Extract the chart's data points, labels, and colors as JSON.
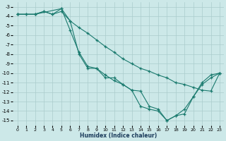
{
  "xlabel": "Humidex (Indice chaleur)",
  "bg_color": "#cce8e8",
  "grid_color": "#aacccc",
  "line_color": "#1a7a6e",
  "xlim": [
    -0.5,
    23.5
  ],
  "ylim": [
    -15.5,
    -2.5
  ],
  "line1_x": [
    0,
    1,
    2,
    3,
    4,
    5,
    6,
    7,
    8,
    9,
    10,
    11,
    12,
    13,
    14,
    15,
    16,
    17,
    18,
    19,
    20,
    21,
    22,
    23
  ],
  "line1_y": [
    -3.8,
    -3.8,
    -3.8,
    -3.5,
    -3.8,
    -3.5,
    -4.5,
    -5.2,
    -5.8,
    -6.5,
    -7.2,
    -7.8,
    -8.5,
    -9.0,
    -9.5,
    -9.8,
    -10.2,
    -10.5,
    -11.0,
    -11.2,
    -11.5,
    -11.8,
    -11.9,
    -10.0
  ],
  "line2_x": [
    0,
    1,
    2,
    3,
    4,
    5,
    6,
    7,
    8,
    9,
    10,
    11,
    12,
    13,
    14,
    15,
    16,
    17,
    18,
    19,
    20,
    21,
    22,
    23
  ],
  "line2_y": [
    -3.8,
    -3.8,
    -3.8,
    -3.5,
    -3.8,
    -3.2,
    -4.5,
    -8.0,
    -9.5,
    -9.5,
    -10.5,
    -10.5,
    -11.2,
    -11.8,
    -13.5,
    -13.8,
    -14.0,
    -15.0,
    -14.5,
    -14.3,
    -12.5,
    -11.2,
    -10.5,
    -10.0
  ],
  "line3_x": [
    0,
    2,
    5,
    6,
    7,
    8,
    9,
    10,
    11,
    12,
    13,
    14,
    15,
    16,
    17,
    18,
    19,
    20,
    21,
    22,
    23
  ],
  "line3_y": [
    -3.8,
    -3.8,
    -3.2,
    -5.5,
    -7.8,
    -9.3,
    -9.5,
    -10.2,
    -10.8,
    -11.2,
    -11.8,
    -11.9,
    -13.5,
    -13.8,
    -15.0,
    -14.5,
    -13.8,
    -12.5,
    -11.0,
    -10.2,
    -10.0
  ]
}
